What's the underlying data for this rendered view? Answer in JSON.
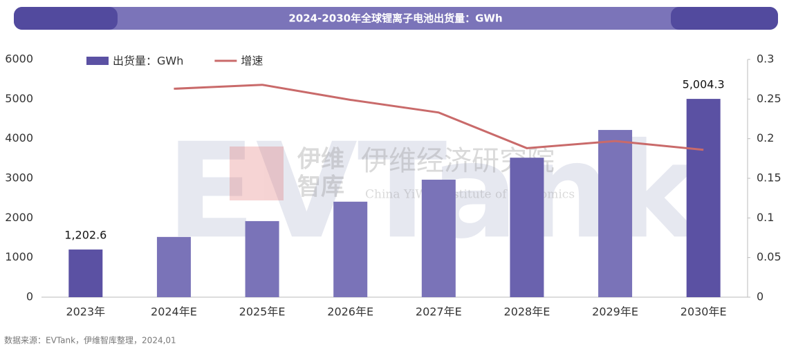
{
  "chart_data": {
    "type": "bar-line",
    "title": "2024-2030年全球锂离子电池出货量：GWh",
    "categories": [
      "2023年",
      "2024年E",
      "2025年E",
      "2026年E",
      "2027年E",
      "2028年E",
      "2029年E",
      "2030年E"
    ],
    "series": [
      {
        "name": "出货量：GWh",
        "type": "bar",
        "color": "#5b51a3",
        "colors": [
          "#5b51a3",
          "#7a73b8",
          "#7a73b8",
          "#7a73b8",
          "#7a73b8",
          "#6a62ae",
          "#7a73b8",
          "#5b51a3"
        ],
        "values": [
          1202.6,
          1520,
          1920,
          2410,
          2965,
          3520,
          4220,
          5004.3
        ],
        "value_labels": [
          "1,202.6",
          null,
          null,
          null,
          null,
          null,
          null,
          "5,004.3"
        ]
      },
      {
        "name": "增速",
        "type": "line",
        "axis": "y2",
        "color": "#c96a6a",
        "values": [
          null,
          0.263,
          0.268,
          0.249,
          0.233,
          0.188,
          0.197,
          0.186
        ]
      }
    ],
    "ylim": [
      0,
      6000
    ],
    "yticks": [
      0,
      1000,
      2000,
      3000,
      4000,
      5000,
      6000
    ],
    "y2lim": [
      0,
      0.3
    ],
    "y2ticks": [
      0,
      0.05,
      0.1,
      0.15,
      0.2,
      0.25,
      0.3
    ],
    "legend": "top-left",
    "source": "数据来源：EVTank，伊维智库整理，2024,01"
  },
  "watermark": {
    "logo": "EVTank",
    "short_1": "伊维",
    "short_2": "智库",
    "name": "伊维经济研究院",
    "name_en": "China YiWei Institute of Economics"
  }
}
